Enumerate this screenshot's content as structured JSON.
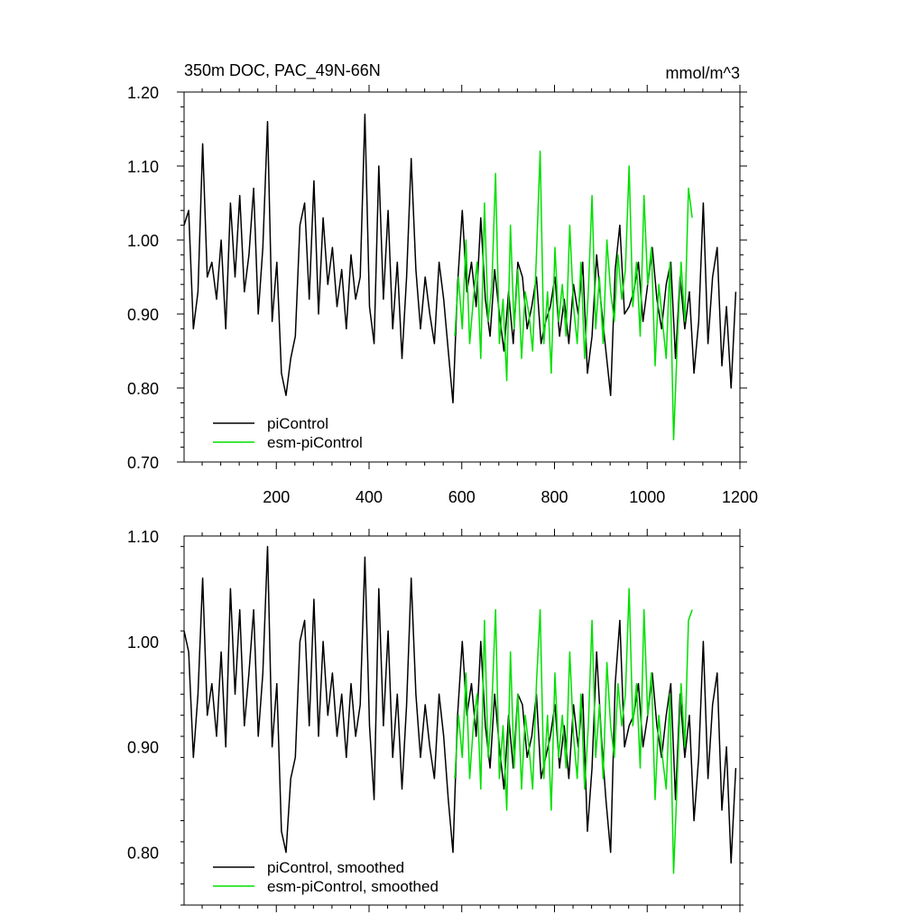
{
  "title_left": "350m DOC, PAC_49N-66N",
  "title_right": "mmol/m^3",
  "colors": {
    "piControl": "#000000",
    "esm_piControl": "#00e000"
  },
  "chart_data": [
    {
      "type": "line",
      "xlim": [
        1,
        1200
      ],
      "ylim": [
        0.7,
        1.2
      ],
      "xticks": [
        200,
        400,
        600,
        800,
        1000,
        1200
      ],
      "xtick_labels": [
        "200",
        "400",
        "600",
        "800",
        "1000",
        "1200"
      ],
      "yticks": [
        0.7,
        0.8,
        0.9,
        1.0,
        1.1,
        1.2
      ],
      "ytick_labels": [
        "0.70",
        "0.80",
        "0.90",
        "1.00",
        "1.10",
        "1.20"
      ],
      "legend_placement": "bottom-left",
      "series": [
        {
          "name": "piControl",
          "x_start": 1,
          "x_step": 10,
          "values": [
            1.02,
            1.04,
            0.88,
            0.93,
            1.13,
            0.95,
            0.97,
            0.92,
            1.0,
            0.88,
            1.05,
            0.95,
            1.06,
            0.93,
            0.98,
            1.07,
            0.9,
            0.99,
            1.16,
            0.89,
            0.97,
            0.82,
            0.79,
            0.84,
            0.87,
            1.02,
            1.05,
            0.92,
            1.08,
            0.9,
            1.03,
            0.94,
            0.99,
            0.91,
            0.96,
            0.88,
            0.98,
            0.92,
            0.95,
            1.17,
            0.91,
            0.86,
            1.1,
            0.92,
            1.04,
            0.88,
            0.97,
            0.84,
            0.95,
            1.11,
            0.96,
            0.88,
            0.95,
            0.9,
            0.86,
            0.97,
            0.92,
            0.85,
            0.78,
            0.94,
            1.04,
            0.93,
            0.97,
            0.91,
            1.03,
            0.92,
            0.87,
            0.96,
            0.9,
            0.85,
            0.93,
            0.86,
            0.97,
            0.95,
            0.88,
            0.91,
            0.95,
            0.86,
            0.89,
            0.91,
            0.95,
            0.87,
            0.92,
            0.86,
            0.94,
            0.9,
            0.97,
            0.82,
            0.87,
            0.98,
            0.91,
            0.85,
            0.79,
            0.96,
            1.02,
            0.9,
            0.91,
            0.93,
            0.97,
            0.89,
            0.94,
            0.99,
            0.92,
            0.88,
            0.94,
            0.97,
            0.84,
            0.95,
            0.88,
            0.93,
            0.82,
            0.89,
            1.05,
            0.86,
            0.95,
            0.99,
            0.83,
            0.91,
            0.8,
            0.93
          ]
        },
        {
          "name": "esm-piControl",
          "x_start": 585,
          "x_step": 8,
          "values": [
            0.87,
            0.95,
            0.88,
            1.0,
            0.86,
            0.92,
            0.97,
            0.84,
            1.05,
            0.89,
            0.94,
            1.09,
            0.86,
            0.92,
            0.81,
            1.02,
            0.88,
            0.96,
            0.84,
            0.93,
            0.9,
            0.85,
            0.98,
            1.12,
            0.86,
            0.93,
            0.82,
            0.99,
            0.89,
            0.94,
            0.87,
            1.02,
            0.91,
            0.86,
            0.97,
            0.84,
            0.93,
            1.06,
            0.88,
            0.95,
            0.86,
            1.0,
            0.93,
            0.89,
            0.98,
            0.92,
            0.96,
            1.1,
            0.91,
            0.97,
            0.87,
            1.06,
            0.94,
            0.99,
            0.83,
            0.94,
            0.89,
            0.84,
            0.97,
            0.73,
            0.86,
            0.97,
            0.89,
            1.07,
            1.03
          ]
        }
      ]
    },
    {
      "type": "line",
      "xlim": [
        1,
        1200
      ],
      "ylim": [
        0.75,
        1.1
      ],
      "xticks": [
        200,
        400,
        600,
        800,
        1000,
        1200
      ],
      "yticks": [
        0.8,
        0.9,
        1.0,
        1.1
      ],
      "ytick_labels": [
        "0.80",
        "0.90",
        "1.00",
        "1.10"
      ],
      "legend_placement": "bottom-left",
      "series": [
        {
          "name": "piControl, smoothed",
          "x_start": 1,
          "x_step": 10,
          "values": [
            1.01,
            0.99,
            0.89,
            0.95,
            1.06,
            0.93,
            0.96,
            0.91,
            0.99,
            0.9,
            1.05,
            0.95,
            1.03,
            0.92,
            0.97,
            1.03,
            0.91,
            0.97,
            1.09,
            0.9,
            0.96,
            0.82,
            0.8,
            0.87,
            0.89,
            1.0,
            1.02,
            0.92,
            1.04,
            0.91,
            1.0,
            0.93,
            0.97,
            0.91,
            0.95,
            0.89,
            0.96,
            0.91,
            0.94,
            1.08,
            0.92,
            0.85,
            1.05,
            0.92,
            1.01,
            0.89,
            0.95,
            0.86,
            0.94,
            1.06,
            0.95,
            0.89,
            0.94,
            0.9,
            0.87,
            0.95,
            0.91,
            0.85,
            0.8,
            0.93,
            1.0,
            0.93,
            0.96,
            0.91,
            1.0,
            0.92,
            0.88,
            0.95,
            0.9,
            0.86,
            0.93,
            0.88,
            0.95,
            0.94,
            0.89,
            0.91,
            0.95,
            0.87,
            0.89,
            0.91,
            0.94,
            0.88,
            0.92,
            0.87,
            0.94,
            0.9,
            0.95,
            0.82,
            0.88,
            0.99,
            0.91,
            0.85,
            0.8,
            0.96,
            1.02,
            0.9,
            0.92,
            0.93,
            0.96,
            0.9,
            0.93,
            0.97,
            0.92,
            0.89,
            0.93,
            0.96,
            0.85,
            0.95,
            0.89,
            0.93,
            0.83,
            0.89,
            1.0,
            0.87,
            0.94,
            0.97,
            0.84,
            0.9,
            0.79,
            0.88
          ]
        },
        {
          "name": "esm-piControl, smoothed",
          "x_start": 585,
          "x_step": 8,
          "values": [
            0.87,
            0.93,
            0.89,
            0.97,
            0.87,
            0.92,
            0.95,
            0.86,
            1.02,
            0.89,
            0.94,
            1.03,
            0.87,
            0.92,
            0.84,
            0.99,
            0.88,
            0.95,
            0.86,
            0.93,
            0.9,
            0.86,
            0.96,
            1.03,
            0.87,
            0.93,
            0.84,
            0.97,
            0.89,
            0.93,
            0.88,
            0.99,
            0.91,
            0.87,
            0.95,
            0.86,
            0.92,
            1.02,
            0.89,
            0.94,
            0.87,
            0.98,
            0.92,
            0.89,
            0.96,
            0.92,
            0.95,
            1.05,
            0.92,
            0.96,
            0.88,
            1.03,
            0.93,
            0.97,
            0.85,
            0.93,
            0.89,
            0.86,
            0.95,
            0.78,
            0.87,
            0.96,
            0.9,
            1.02,
            1.03
          ]
        }
      ]
    }
  ]
}
